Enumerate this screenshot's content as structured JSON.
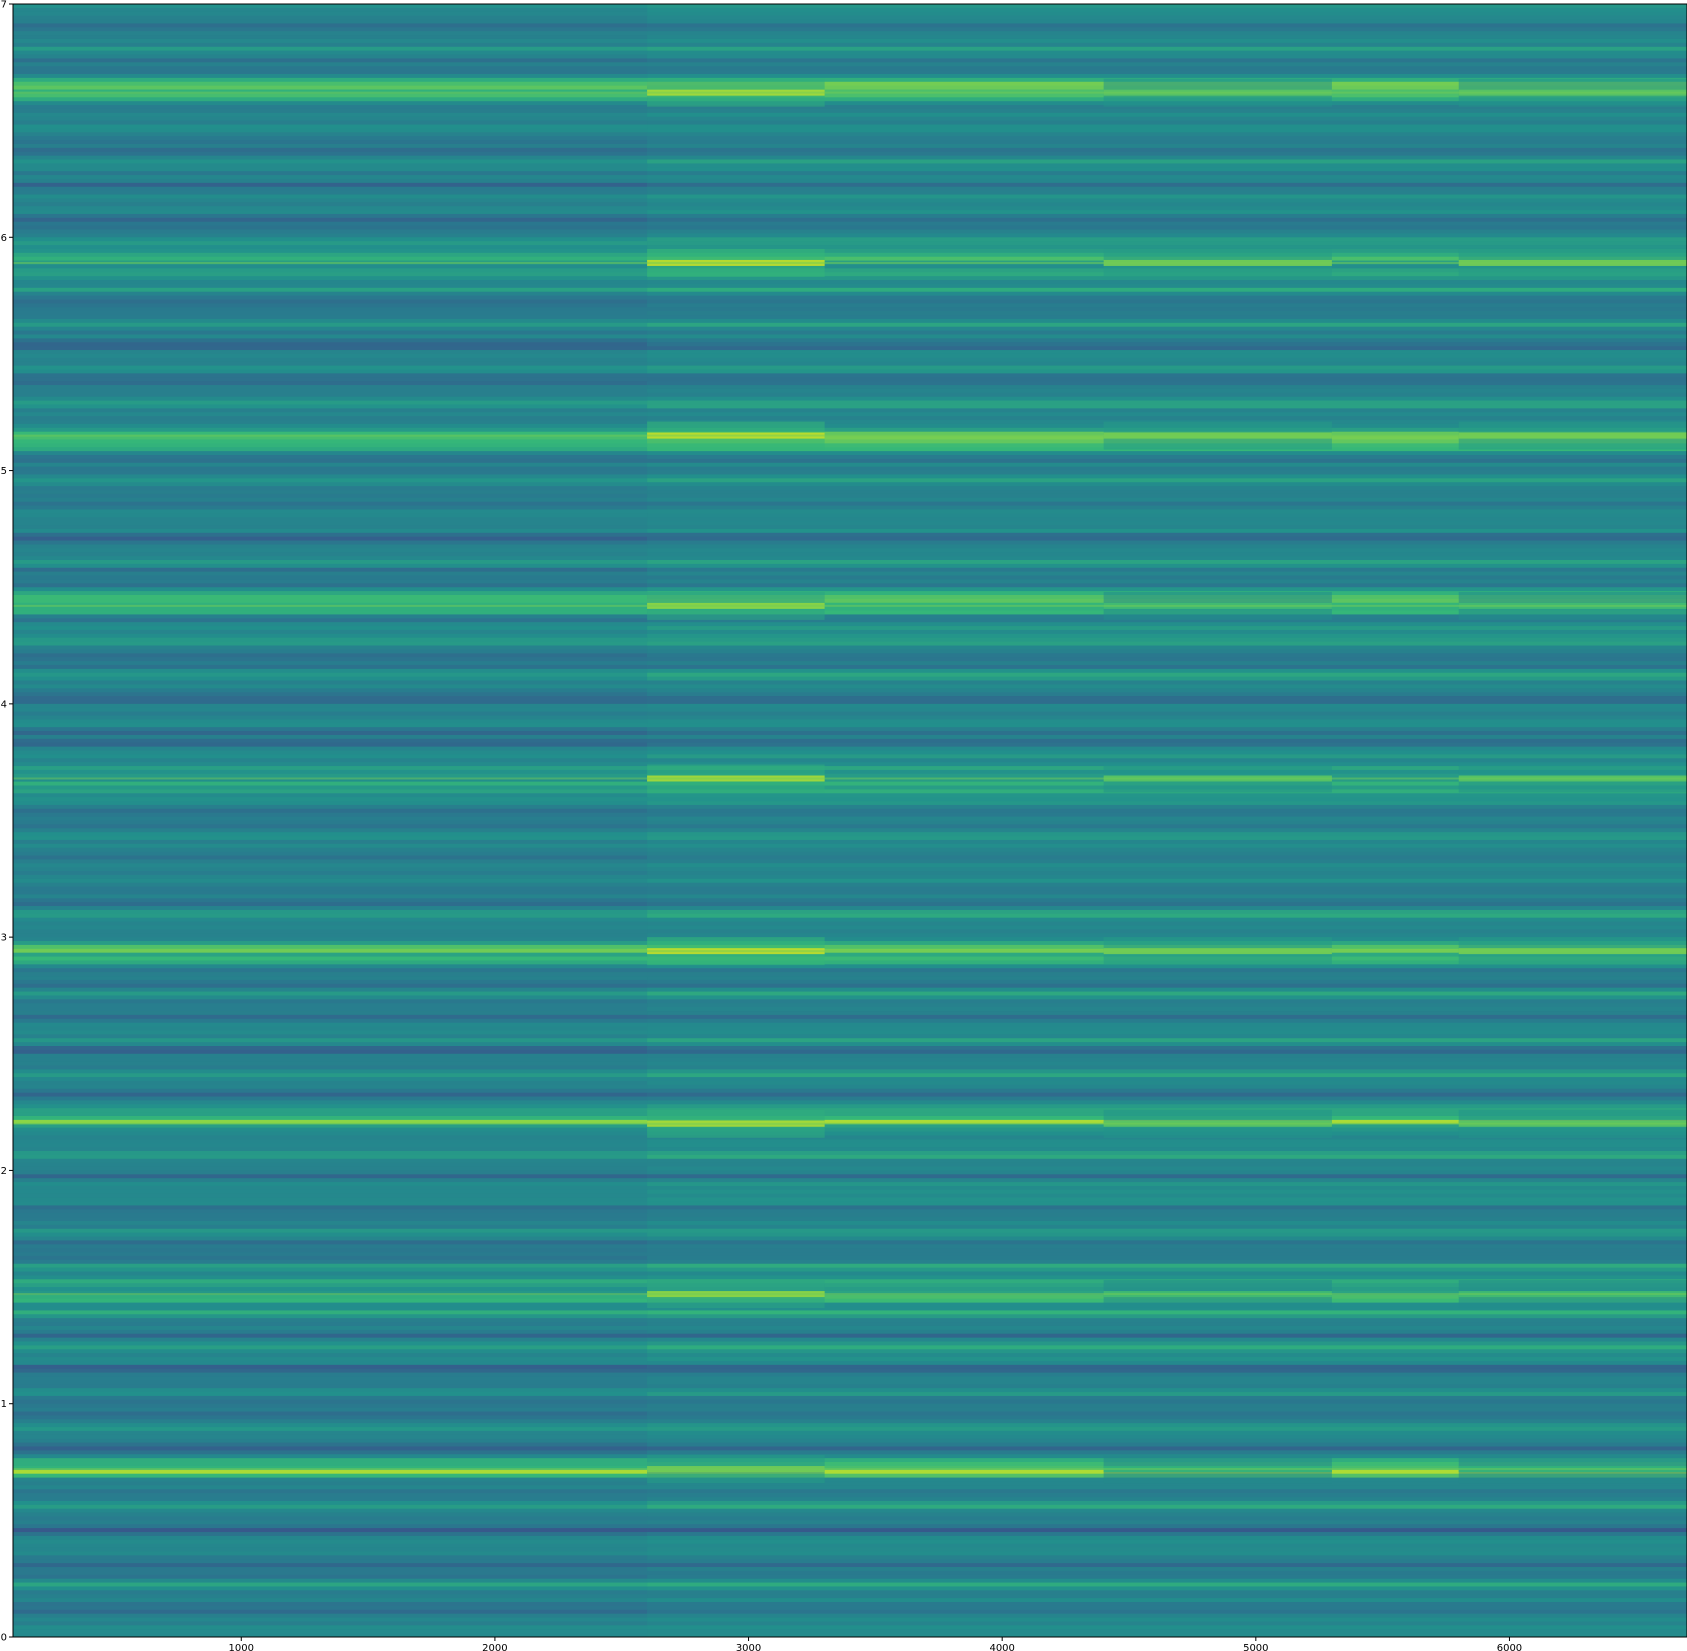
{
  "chart_data": {
    "type": "heatmap",
    "title": "",
    "xlabel": "",
    "ylabel": "",
    "xlim": [
      100,
      6700
    ],
    "ylim": [
      0,
      7
    ],
    "x_ticks": [
      1000,
      2000,
      3000,
      4000,
      5000,
      6000
    ],
    "y_ticks": [
      0,
      1,
      2,
      3,
      4,
      5,
      6,
      7
    ],
    "x_tick_labels": [
      "1000",
      "2000",
      "3000",
      "4000",
      "5000",
      "6000"
    ],
    "y_tick_labels": [
      "0",
      "1",
      "2",
      "3",
      "4",
      "5",
      "6",
      "7"
    ],
    "colormap": "viridis",
    "grid": false,
    "colors": {
      "low": "#3b4f8a",
      "mid": "#22908c",
      "high": "#dde31c"
    },
    "bright_rows_y": [
      0.72,
      1.47,
      2.2,
      2.94,
      3.68,
      4.42,
      5.15,
      5.89,
      6.62
    ],
    "row_peak_values": [
      0.8,
      0.85,
      0.9,
      0.95,
      0.9,
      0.85,
      0.95,
      0.95,
      0.9
    ],
    "region_boundary_x": 2600,
    "bright_segments_x": [
      [
        2600,
        3300
      ],
      [
        4400,
        5300
      ],
      [
        5800,
        6700
      ]
    ]
  }
}
